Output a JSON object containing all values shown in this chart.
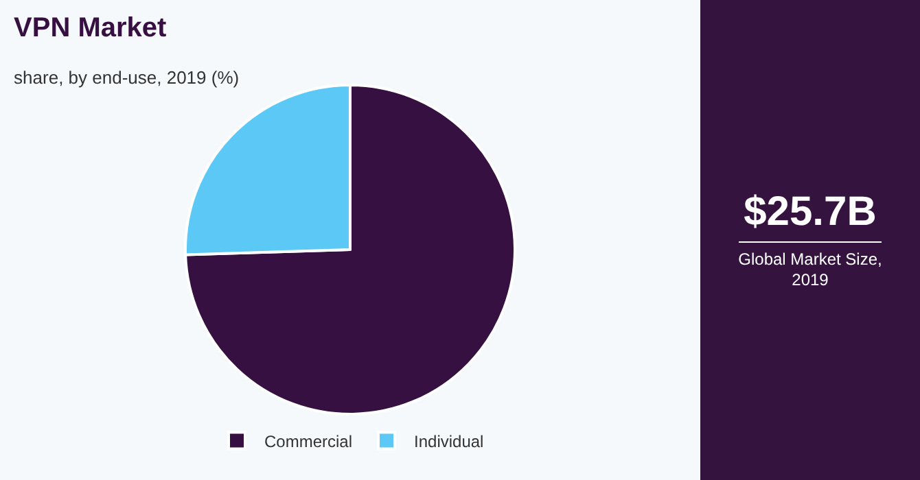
{
  "chart_data": {
    "type": "pie",
    "title": "VPN Market",
    "subtitle": "share, by end-use, 2019 (%)",
    "categories": [
      "Commercial",
      "Individual"
    ],
    "values": [
      74.5,
      25.5
    ],
    "colors": [
      "#361040",
      "#5bc8f5"
    ],
    "legend": "bottom",
    "annotations": [
      "$25.7B",
      "Global Market Size, 2019"
    ]
  }
}
